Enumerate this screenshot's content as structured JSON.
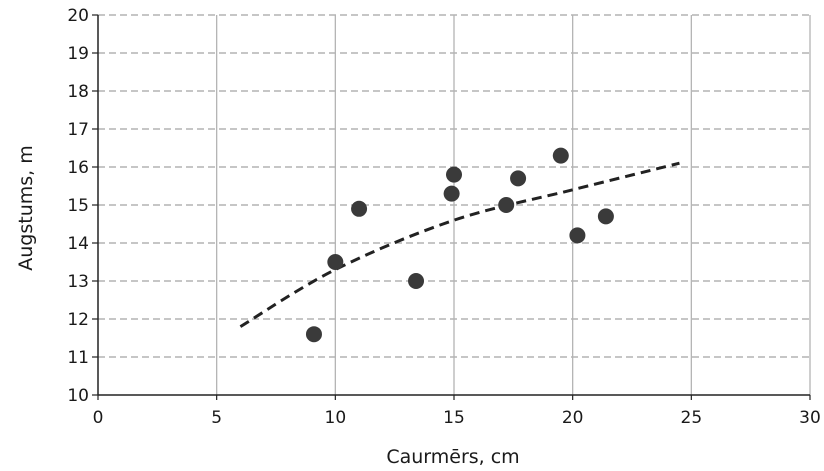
{
  "chart_data": {
    "type": "scatter",
    "xlabel": "Caurmērs, cm",
    "ylabel": "Augstums, m",
    "xlim": [
      0,
      30
    ],
    "ylim": [
      10,
      20
    ],
    "x_ticks": [
      0,
      5,
      10,
      15,
      20,
      25,
      30
    ],
    "y_ticks": [
      10,
      11,
      12,
      13,
      14,
      15,
      16,
      17,
      18,
      19,
      20
    ],
    "grid": {
      "vertical": "solid",
      "horizontal": "dashed"
    },
    "points": [
      {
        "x": 9.1,
        "y": 11.6
      },
      {
        "x": 10.0,
        "y": 13.5
      },
      {
        "x": 11.0,
        "y": 14.9
      },
      {
        "x": 13.4,
        "y": 13.0
      },
      {
        "x": 14.9,
        "y": 15.3
      },
      {
        "x": 15.0,
        "y": 15.8
      },
      {
        "x": 17.2,
        "y": 15.0
      },
      {
        "x": 17.7,
        "y": 15.7
      },
      {
        "x": 19.5,
        "y": 16.3
      },
      {
        "x": 20.2,
        "y": 14.2
      },
      {
        "x": 21.4,
        "y": 14.7
      }
    ],
    "trendline": {
      "style": "dashed",
      "points": [
        {
          "x": 6.0,
          "y": 11.8
        },
        {
          "x": 10.0,
          "y": 13.3
        },
        {
          "x": 15.0,
          "y": 14.6
        },
        {
          "x": 20.0,
          "y": 15.4
        },
        {
          "x": 24.5,
          "y": 16.1
        }
      ]
    },
    "colors": {
      "point": "#3a3a3a",
      "trend": "#222222",
      "grid": "#b4b4b4",
      "axis": "#222222"
    }
  }
}
